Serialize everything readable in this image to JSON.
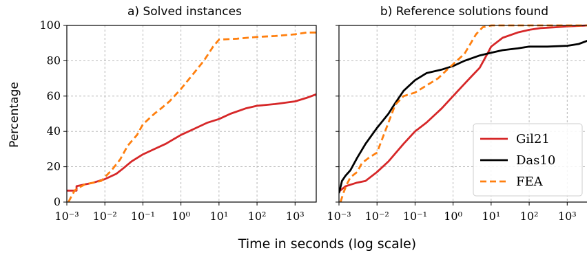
{
  "chart_data": [
    {
      "type": "line",
      "title": "a) Solved instances",
      "xlabel": "Time in seconds (log scale)",
      "ylabel": "Percentage",
      "xscale": "log",
      "xlim": [
        0.001,
        3600
      ],
      "ylim": [
        0,
        100
      ],
      "x_ticks": [
        0.001,
        0.01,
        0.1,
        1,
        10,
        100,
        1000
      ],
      "x_tick_labels": [
        "10⁻³",
        "10⁻²",
        "10⁻¹",
        "10⁰",
        "10¹",
        "10²",
        "10³"
      ],
      "y_ticks": [
        0,
        20,
        40,
        60,
        80,
        100
      ],
      "grid": true,
      "series": [
        {
          "name": "Gil21",
          "color": "#d62728",
          "dash": "solid",
          "x": [
            0.001,
            0.0018,
            0.0018,
            0.003,
            0.005,
            0.007,
            0.01,
            0.02,
            0.03,
            0.05,
            0.1,
            0.2,
            0.4,
            1,
            2,
            5,
            10,
            20,
            50,
            100,
            300,
            1000,
            2000,
            3600
          ],
          "y": [
            6.5,
            6.5,
            9,
            10,
            11,
            12,
            13,
            16,
            19,
            23,
            27,
            30,
            33,
            38,
            41,
            45,
            47,
            50,
            53,
            54.5,
            55.5,
            57,
            59,
            61
          ]
        },
        {
          "name": "FEA",
          "color": "#ff7f0e",
          "dash": "dashed",
          "x": [
            0.0011,
            0.0013,
            0.0016,
            0.002,
            0.003,
            0.005,
            0.008,
            0.015,
            0.025,
            0.04,
            0.07,
            0.1,
            0.2,
            0.3,
            0.5,
            1,
            2,
            4,
            7,
            10,
            30,
            100,
            300,
            1000,
            2000,
            3600
          ],
          "y": [
            0,
            3,
            6.5,
            8,
            10,
            11,
            12,
            18,
            24,
            32,
            38,
            44,
            50,
            53,
            57,
            64,
            72,
            80,
            88,
            92,
            92.5,
            93.5,
            94,
            95,
            96,
            96
          ]
        }
      ]
    },
    {
      "type": "line",
      "title": "b) Reference solutions found",
      "xlabel": "Time in seconds (log scale)",
      "ylabel": "Percentage",
      "xscale": "log",
      "xlim": [
        0.001,
        3600
      ],
      "ylim": [
        0,
        100
      ],
      "x_ticks": [
        0.001,
        0.01,
        0.1,
        1,
        10,
        100,
        1000
      ],
      "x_tick_labels": [
        "10⁻³",
        "10⁻²",
        "10⁻¹",
        "10⁰",
        "10¹",
        "10²",
        "10³"
      ],
      "y_ticks": [
        0,
        20,
        40,
        60,
        80,
        100
      ],
      "grid": true,
      "legend": {
        "position": "lower-right",
        "entries": [
          "Gil21",
          "Das10",
          "FEA"
        ]
      },
      "series": [
        {
          "name": "Gil21",
          "color": "#d62728",
          "dash": "solid",
          "x": [
            0.001,
            0.0015,
            0.003,
            0.005,
            0.01,
            0.02,
            0.05,
            0.1,
            0.2,
            0.5,
            1,
            2,
            3,
            5,
            8,
            10,
            20,
            50,
            100,
            200,
            500,
            1000,
            3600
          ],
          "y": [
            6,
            9,
            11,
            12,
            17,
            23,
            33,
            40,
            45,
            53,
            60,
            67,
            71,
            76,
            84,
            88,
            93,
            96,
            97.5,
            98.5,
            99,
            99.5,
            100
          ]
        },
        {
          "name": "Das10",
          "color": "#000000",
          "dash": "solid",
          "x": [
            0.001,
            0.0012,
            0.0015,
            0.002,
            0.003,
            0.005,
            0.01,
            0.02,
            0.03,
            0.05,
            0.1,
            0.2,
            0.5,
            1,
            2,
            5,
            10,
            20,
            50,
            100,
            300,
            1000,
            2000,
            3600
          ],
          "y": [
            5,
            12,
            15,
            18,
            25,
            33,
            42,
            50,
            56,
            63,
            69,
            73,
            75,
            77,
            80,
            83,
            84.5,
            86,
            87,
            88,
            88,
            88.5,
            89.5,
            91.5
          ]
        },
        {
          "name": "FEA",
          "color": "#ff7f0e",
          "dash": "dashed",
          "x": [
            0.0011,
            0.0013,
            0.0016,
            0.002,
            0.003,
            0.004,
            0.006,
            0.01,
            0.02,
            0.03,
            0.05,
            0.1,
            0.2,
            0.4,
            0.7,
            1,
            2,
            4,
            6,
            10,
            100,
            1000,
            3600
          ],
          "y": [
            0,
            5,
            10,
            14,
            17,
            22,
            25,
            28,
            45,
            55,
            60,
            62,
            66,
            70,
            75,
            78,
            84,
            95,
            99,
            100,
            100,
            100,
            100
          ]
        }
      ]
    }
  ]
}
